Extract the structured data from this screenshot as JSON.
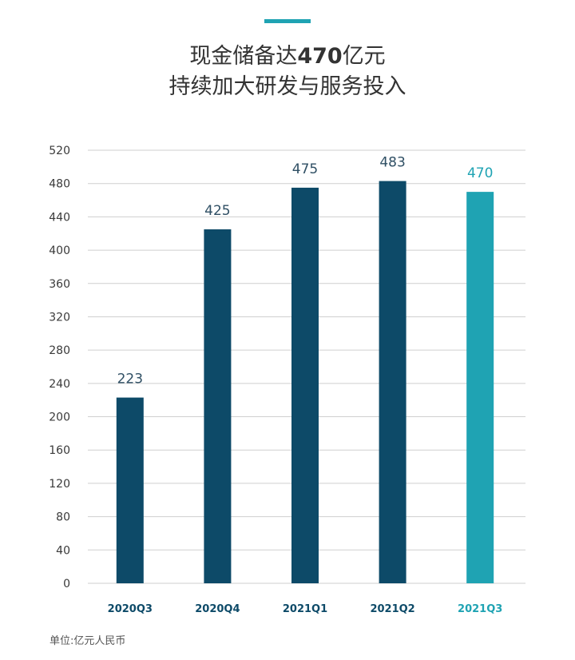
{
  "title": {
    "line1_prefix": "现金储备达",
    "line1_bold": "470",
    "line1_suffix": "亿元",
    "line2": "持续加大研发与服务投入"
  },
  "unit_note": "单位:亿元人民币",
  "colors": {
    "accent": "#1fa3b3",
    "bar_dark": "#0d4a68",
    "bar_highlight": "#1fa3b3",
    "label_dark": "#2f4f64",
    "gridline": "#cfcfcf"
  },
  "chart_data": {
    "type": "bar",
    "categories": [
      "2020Q3",
      "2020Q4",
      "2021Q1",
      "2021Q2",
      "2021Q3"
    ],
    "values": [
      223,
      425,
      475,
      483,
      470
    ],
    "data_labels": [
      "223",
      "425",
      "475",
      "483",
      "470"
    ],
    "highlight_index": 4,
    "ylim": [
      0,
      520
    ],
    "yticks": [
      0,
      40,
      80,
      120,
      160,
      200,
      240,
      280,
      320,
      360,
      400,
      440,
      480,
      520
    ],
    "grid": true,
    "legend": "none"
  }
}
